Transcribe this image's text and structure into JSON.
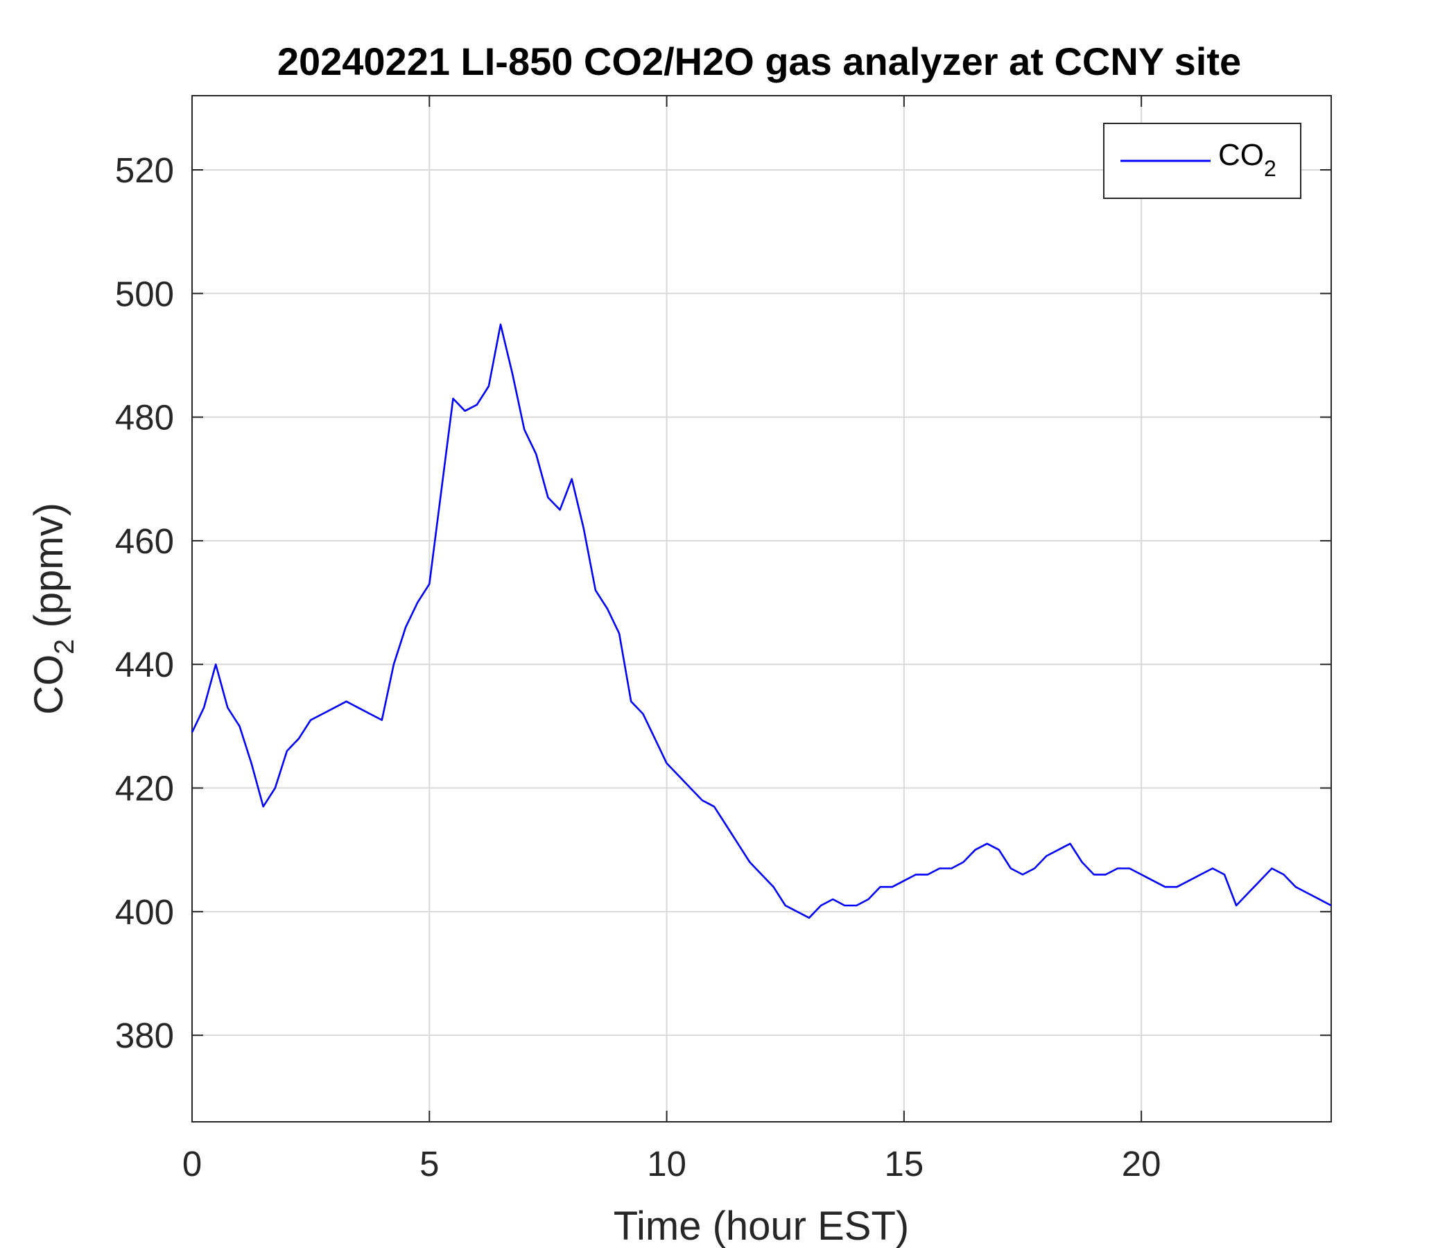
{
  "chart_data": {
    "type": "line",
    "title": "20240221 LI-850 CO2/H2O gas analyzer at CCNY site",
    "xlabel": "Time (hour EST)",
    "ylabel": {
      "base": "CO",
      "sub": "2",
      "rest": " (ppmv)"
    },
    "xlim": [
      0,
      24
    ],
    "ylim": [
      366,
      532
    ],
    "xticks": [
      0,
      5,
      10,
      15,
      20
    ],
    "yticks": [
      380,
      400,
      420,
      440,
      460,
      480,
      500,
      520
    ],
    "grid": true,
    "legend": {
      "position": "top-right"
    },
    "series": [
      {
        "name": {
          "base": "CO",
          "sub": "2"
        },
        "color": "#0000ff",
        "x": [
          0,
          0.25,
          0.5,
          0.75,
          1,
          1.25,
          1.5,
          1.75,
          2,
          2.25,
          2.5,
          2.75,
          3,
          3.25,
          3.5,
          3.75,
          4,
          4.25,
          4.5,
          4.75,
          5,
          5.25,
          5.5,
          5.75,
          6,
          6.25,
          6.5,
          6.75,
          7,
          7.25,
          7.5,
          7.75,
          8,
          8.25,
          8.5,
          8.75,
          9,
          9.25,
          9.5,
          9.75,
          10,
          10.25,
          10.5,
          10.75,
          11,
          11.25,
          11.5,
          11.75,
          12,
          12.25,
          12.5,
          12.75,
          13,
          13.25,
          13.5,
          13.75,
          14,
          14.25,
          14.5,
          14.75,
          15,
          15.25,
          15.5,
          15.75,
          16,
          16.25,
          16.5,
          16.75,
          17,
          17.25,
          17.5,
          17.75,
          18,
          18.25,
          18.5,
          18.75,
          19,
          19.25,
          19.5,
          19.75,
          20,
          20.25,
          20.5,
          20.75,
          21,
          21.25,
          21.5,
          21.75,
          22,
          22.25,
          22.5,
          22.75,
          23,
          23.25,
          23.5,
          23.75,
          24
        ],
        "values": [
          429,
          433,
          440,
          433,
          430,
          424,
          417,
          420,
          426,
          428,
          431,
          432,
          433,
          434,
          433,
          432,
          431,
          440,
          446,
          450,
          453,
          468,
          483,
          481,
          482,
          485,
          495,
          487,
          478,
          474,
          467,
          465,
          470,
          462,
          452,
          449,
          445,
          434,
          432,
          428,
          424,
          422,
          420,
          418,
          417,
          414,
          411,
          408,
          406,
          404,
          401,
          400,
          399,
          401,
          402,
          401,
          401,
          402,
          404,
          404,
          405,
          406,
          406,
          407,
          407,
          408,
          410,
          411,
          410,
          407,
          406,
          407,
          409,
          410,
          411,
          408,
          406,
          406,
          407,
          407,
          406,
          405,
          404,
          404,
          405,
          406,
          407,
          406,
          401,
          403,
          405,
          407,
          406,
          404,
          403,
          402,
          401
        ]
      }
    ]
  }
}
